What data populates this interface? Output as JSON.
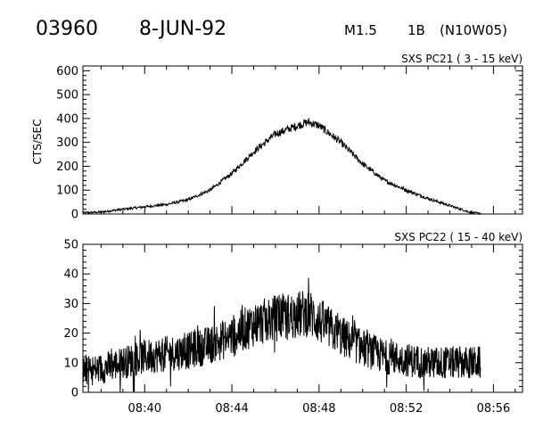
{
  "header": {
    "event_id": "03960",
    "date": "8-JUN-92",
    "flare_class": "M1.5",
    "optical_class": "1B",
    "location": "(N10W05)"
  },
  "chart_data": [
    {
      "type": "line",
      "title": "SXS PC21  (  3 - 15 keV)",
      "xlabel": "",
      "ylabel": "CTS/SEC",
      "xlim": [
        "08:37:10",
        "08:57:20"
      ],
      "ylim": [
        0,
        620
      ],
      "x_ticks": [
        "08:40",
        "08:44",
        "08:48",
        "08:52",
        "08:56"
      ],
      "y_ticks": [
        "0",
        "100",
        "200",
        "300",
        "400",
        "500",
        "600"
      ],
      "data_start": "08:37:10",
      "data_end": "08:55:25",
      "series": [
        {
          "x": [
            "08:37:10",
            "08:38:00",
            "08:39:00",
            "08:40:00",
            "08:41:00",
            "08:42:00",
            "08:43:00",
            "08:44:00",
            "08:45:00",
            "08:46:00",
            "08:47:00",
            "08:47:30",
            "08:48:00",
            "08:49:00",
            "08:50:00",
            "08:51:00",
            "08:52:00",
            "08:53:00",
            "08:54:00",
            "08:54:30",
            "08:55:00",
            "08:55:25"
          ],
          "values": [
            5,
            8,
            20,
            30,
            40,
            60,
            100,
            170,
            260,
            335,
            370,
            385,
            370,
            300,
            210,
            140,
            100,
            65,
            35,
            20,
            5,
            3
          ]
        }
      ]
    },
    {
      "type": "line",
      "title": "SXS PC22  ( 15 - 40 keV)",
      "xlabel": "",
      "ylabel": "",
      "xlim": [
        "08:37:10",
        "08:57:20"
      ],
      "ylim": [
        0,
        50
      ],
      "x_ticks": [
        "08:40",
        "08:44",
        "08:48",
        "08:52",
        "08:56"
      ],
      "y_ticks": [
        "0",
        "10",
        "20",
        "30",
        "40",
        "50"
      ],
      "data_start": "08:37:10",
      "data_end": "08:55:25",
      "series": [
        {
          "x": [
            "08:37:10",
            "08:38:00",
            "08:39:00",
            "08:40:00",
            "08:41:00",
            "08:42:00",
            "08:43:00",
            "08:44:00",
            "08:45:00",
            "08:46:00",
            "08:47:00",
            "08:47:30",
            "08:48:00",
            "08:49:00",
            "08:50:00",
            "08:51:00",
            "08:52:00",
            "08:53:00",
            "08:54:00",
            "08:55:00",
            "08:55:25"
          ],
          "values": [
            7,
            8,
            10,
            12,
            13,
            14,
            16,
            19,
            23,
            25,
            26,
            27,
            24,
            19,
            15,
            12,
            11,
            10,
            10,
            10,
            10
          ]
        }
      ]
    }
  ]
}
